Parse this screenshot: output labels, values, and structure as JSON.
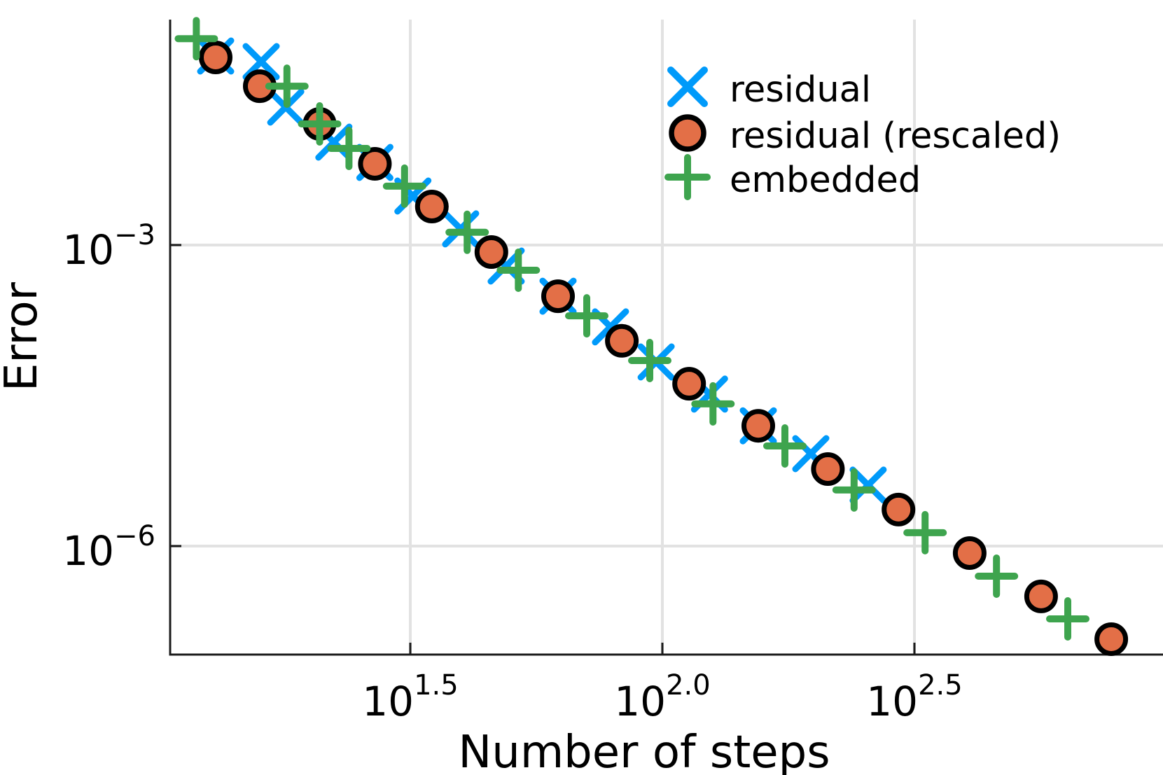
{
  "chart_data": {
    "type": "scatter",
    "title": "",
    "xlabel": "Number of steps",
    "ylabel": "Error",
    "xscale": "log10",
    "yscale": "log10",
    "grid": true,
    "legend_position": "top-right",
    "xlim": [
      10.5,
      985
    ],
    "ylim": [
      8.3e-08,
      0.175
    ],
    "x_ticks": [
      {
        "value": 31.623,
        "base": "10",
        "exp": "1.5"
      },
      {
        "value": 100.0,
        "base": "10",
        "exp": "2.0"
      },
      {
        "value": 316.23,
        "base": "10",
        "exp": "2.5"
      }
    ],
    "y_ticks": [
      {
        "value": 0.001,
        "base": "10",
        "exp": "−3"
      },
      {
        "value": 1e-06,
        "base": "10",
        "exp": "−6"
      }
    ],
    "series": [
      {
        "name": "residual",
        "marker": "x",
        "color": "#009AFA",
        "points": [
          [
            13.0,
            0.0765
          ],
          [
            16.0,
            0.0673
          ],
          [
            17.9,
            0.0237
          ],
          [
            22.3,
            0.0106
          ],
          [
            26.9,
            0.00666
          ],
          [
            32.0,
            0.00308
          ],
          [
            39.8,
            0.00145
          ],
          [
            49.0,
            0.000618
          ],
          [
            62.1,
            0.000309
          ],
          [
            78.9,
            0.000153
          ],
          [
            97.2,
            6.84e-05
          ],
          [
            124,
            3.27e-05
          ],
          [
            155,
            1.58e-05
          ],
          [
            197,
            8.33e-06
          ],
          [
            256,
            4.05e-06
          ]
        ]
      },
      {
        "name": "residual (rescaled)",
        "marker": "circle",
        "color": "#E36F47",
        "edge_color": "#000000",
        "points": [
          [
            13.0,
            0.0741
          ],
          [
            15.9,
            0.0383
          ],
          [
            20.9,
            0.0161
          ],
          [
            26.9,
            0.00645
          ],
          [
            34.9,
            0.00242
          ],
          [
            45.8,
            0.000852
          ],
          [
            62.1,
            0.000309
          ],
          [
            83.1,
            0.000111
          ],
          [
            113,
            4.15e-05
          ],
          [
            155,
            1.58e-05
          ],
          [
            213,
            5.85e-06
          ],
          [
            294,
            2.31e-06
          ],
          [
            407,
            8.51e-07
          ],
          [
            564,
            3.15e-07
          ],
          [
            777,
            1.18e-07
          ]
        ]
      },
      {
        "name": "embedded",
        "marker": "plus",
        "color": "#3EA44E",
        "points": [
          [
            11.9,
            0.114
          ],
          [
            18.0,
            0.0383
          ],
          [
            20.9,
            0.0161
          ],
          [
            23.9,
            0.00918
          ],
          [
            30.8,
            0.00386
          ],
          [
            41.0,
            0.00134
          ],
          [
            51.8,
            0.000561
          ],
          [
            70.8,
            0.000197
          ],
          [
            94.4,
            7.06e-05
          ],
          [
            126,
            2.61e-05
          ],
          [
            175,
            9.95e-06
          ],
          [
            240,
            3.62e-06
          ],
          [
            332,
            1.36e-06
          ],
          [
            460,
            5.01e-07
          ],
          [
            637,
            1.88e-07
          ]
        ]
      }
    ]
  },
  "legend": {
    "items": [
      {
        "label": "residual"
      },
      {
        "label": "residual (rescaled)"
      },
      {
        "label": "embedded"
      }
    ]
  }
}
